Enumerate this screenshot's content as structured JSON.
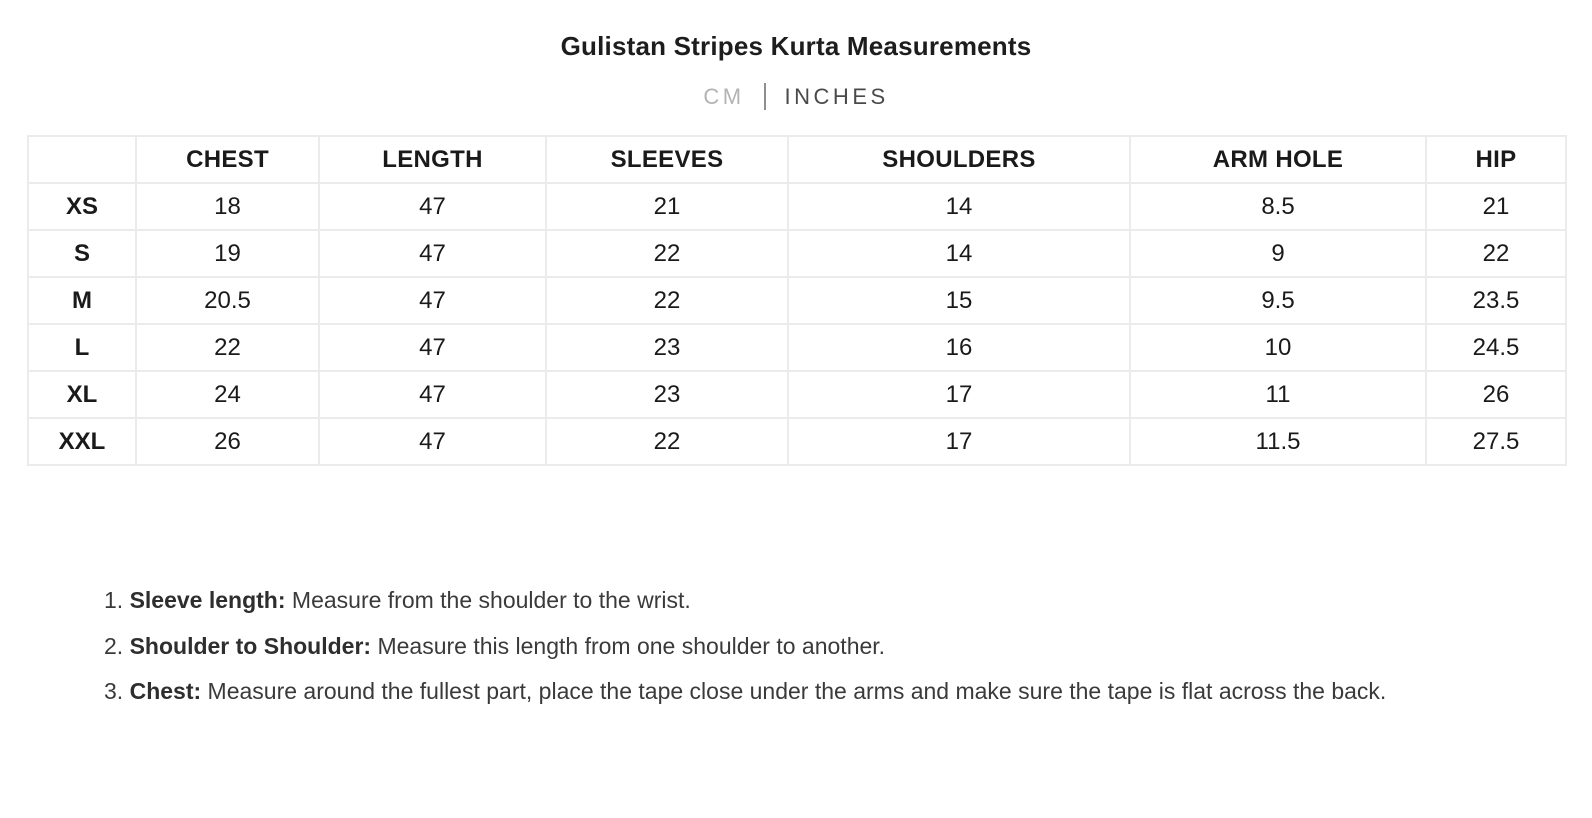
{
  "page": {
    "title": "Gulistan Stripes Kurta Measurements"
  },
  "unit_toggle": {
    "cm_label": "CM",
    "inches_label": "INCHES",
    "selected": "INCHES"
  },
  "size_table": {
    "corner_label": "",
    "columns": [
      "CHEST",
      "LENGTH",
      "SLEEVES",
      "SHOULDERS",
      "ARM HOLE",
      "HIP"
    ],
    "rows": [
      {
        "size": "XS",
        "values": [
          "18",
          "47",
          "21",
          "14",
          "8.5",
          "21"
        ]
      },
      {
        "size": "S",
        "values": [
          "19",
          "47",
          "22",
          "14",
          "9",
          "22"
        ]
      },
      {
        "size": "M",
        "values": [
          "20.5",
          "47",
          "22",
          "15",
          "9.5",
          "23.5"
        ]
      },
      {
        "size": "L",
        "values": [
          "22",
          "47",
          "23",
          "16",
          "10",
          "24.5"
        ]
      },
      {
        "size": "XL",
        "values": [
          "24",
          "47",
          "23",
          "17",
          "11",
          "26"
        ]
      },
      {
        "size": "XXL",
        "values": [
          "26",
          "47",
          "22",
          "17",
          "11.5",
          "27.5"
        ]
      }
    ]
  },
  "instructions": {
    "items": [
      {
        "number": "1.",
        "label": "Sleeve length:",
        "text": " Measure from the shoulder to the wrist."
      },
      {
        "number": "2.",
        "label": "Shoulder to Shoulder:",
        "text": " Measure this length from one shoulder to another."
      },
      {
        "number": "3.",
        "label": "Chest:",
        "text": " Measure around the fullest part, place the tape close under the arms and make sure the tape is flat across the back."
      }
    ]
  },
  "colors": {
    "table_border": "#ebebeb",
    "title_text": "#1d1d1d",
    "muted_unit": "#b3b3b3",
    "active_unit": "#4a4a4a",
    "body_text": "#3a3a3a"
  }
}
